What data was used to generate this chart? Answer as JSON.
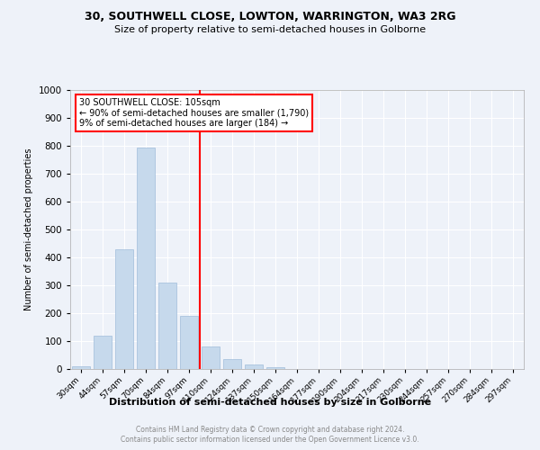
{
  "title1": "30, SOUTHWELL CLOSE, LOWTON, WARRINGTON, WA3 2RG",
  "title2": "Size of property relative to semi-detached houses in Golborne",
  "xlabel": "Distribution of semi-detached houses by size in Golborne",
  "ylabel": "Number of semi-detached properties",
  "categories": [
    "30sqm",
    "44sqm",
    "57sqm",
    "70sqm",
    "84sqm",
    "97sqm",
    "110sqm",
    "124sqm",
    "137sqm",
    "150sqm",
    "164sqm",
    "177sqm",
    "190sqm",
    "204sqm",
    "217sqm",
    "230sqm",
    "244sqm",
    "257sqm",
    "270sqm",
    "284sqm",
    "297sqm"
  ],
  "values": [
    10,
    120,
    430,
    795,
    310,
    190,
    80,
    35,
    15,
    8,
    0,
    0,
    0,
    0,
    0,
    0,
    0,
    0,
    0,
    0,
    0
  ],
  "bar_color": "#c6d9ec",
  "bar_edge_color": "#a0bcda",
  "ylim": [
    0,
    1000
  ],
  "yticks": [
    0,
    100,
    200,
    300,
    400,
    500,
    600,
    700,
    800,
    900,
    1000
  ],
  "vline_x_index": 6,
  "vline_color": "red",
  "annotation_text1": "30 SOUTHWELL CLOSE: 105sqm",
  "annotation_text2": "← 90% of semi-detached houses are smaller (1,790)",
  "annotation_text3": "9% of semi-detached houses are larger (184) →",
  "footer1": "Contains HM Land Registry data © Crown copyright and database right 2024.",
  "footer2": "Contains public sector information licensed under the Open Government Licence v3.0.",
  "bg_color": "#eef2f9",
  "grid_color": "#ffffff"
}
